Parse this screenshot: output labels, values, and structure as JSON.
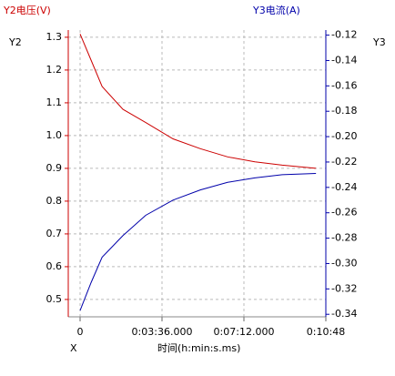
{
  "chart_data": {
    "type": "line",
    "y_label": "Y2电压(V)",
    "y_name": "Y2",
    "y2_label": "Y3电流(A)",
    "y2_name": "Y3",
    "x_name": "X",
    "x_label": "时间(h:min:s.ms)",
    "x": [
      0,
      29,
      58,
      113,
      173,
      245,
      317,
      389,
      461,
      533,
      622
    ],
    "xlim": [
      -31.2,
      648
    ],
    "xticks": [
      0,
      {
        "value": 216,
        "label": "0:03:36.000"
      },
      {
        "value": 432,
        "label": "0:07:12.000"
      },
      {
        "value": 648,
        "label": "0:10:48"
      }
    ],
    "ylim": [
      0.447,
      1.322
    ],
    "yticks": [
      0.5,
      0.6,
      0.7,
      0.8,
      0.9,
      {
        "value": 1.0,
        "label": "1.0"
      },
      1.1,
      1.2,
      1.3
    ],
    "y2lim": [
      -0.342,
      -0.116
    ],
    "y2ticks": [
      -0.12,
      -0.14,
      -0.16,
      -0.18,
      {
        "value": -0.2,
        "label": "-0.20"
      },
      -0.22,
      -0.24,
      -0.26,
      -0.28,
      {
        "value": -0.3,
        "label": "-0.30"
      },
      -0.32,
      -0.34
    ],
    "grid": true,
    "series": [
      {
        "name": "Y2电压(V)",
        "color": "#cc0000",
        "values": [
          1.31,
          1.23,
          1.15,
          1.08,
          1.04,
          0.99,
          0.96,
          0.935,
          0.92,
          0.91,
          0.9
        ]
      },
      {
        "name": "Y3电流(A)",
        "color": "#0000aa",
        "axis": "y2",
        "values": [
          -0.337,
          -0.315,
          -0.295,
          -0.278,
          -0.262,
          -0.25,
          -0.242,
          -0.236,
          -0.2325,
          -0.23,
          -0.229
        ]
      }
    ]
  }
}
